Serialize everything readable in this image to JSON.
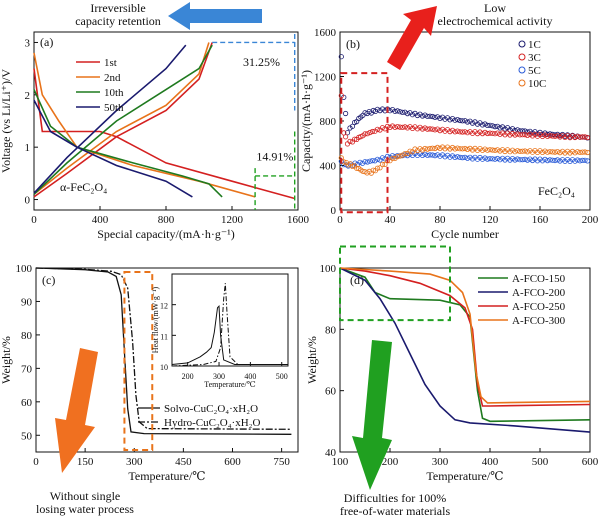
{
  "colors": {
    "red": "#d42020",
    "orange": "#e8731a",
    "green": "#1f7a1f",
    "navy": "#1a1a6e",
    "blue": "#2a5bd7",
    "arrow_blue": "#3a86d6",
    "arrow_red": "#e8201c",
    "arrow_orange": "#f07020",
    "arrow_green": "#20a020",
    "box_red": "#d42020",
    "box_orange": "#e8731a",
    "box_green": "#20a020"
  },
  "annotations": {
    "top_left": [
      "Irreversible",
      "capacity retention"
    ],
    "top_right": [
      "Low",
      "electrochemical activity"
    ],
    "bottom_left": [
      "Without single",
      "losing water process"
    ],
    "bottom_right": [
      "Difficulties for 100%",
      "free-of-water materials"
    ]
  },
  "chart_data": [
    {
      "panel": "(a)",
      "type": "line",
      "xlabel": "Special capacity/(mA·h·g⁻¹)",
      "ylabel": "Voltage (vs Li/Li⁺)/V",
      "xlim": [
        0,
        1600
      ],
      "ylim": [
        -0.2,
        3.2
      ],
      "xticks": [
        "0",
        "400",
        "800",
        "1200",
        "1600"
      ],
      "yticks": [
        "0",
        "1",
        "2",
        "3"
      ],
      "material_label": "α-FeC₂O₄",
      "legend": [
        "1st",
        "2nd",
        "10th",
        "50th"
      ],
      "annotations": [
        "31.25%",
        "14.91%"
      ],
      "series": [
        {
          "name": "1st",
          "color": "red",
          "discharge": [
            [
              0,
              2.5
            ],
            [
              50,
              1.3
            ],
            [
              400,
              1.3
            ],
            [
              500,
              1.2
            ],
            [
              800,
              0.7
            ],
            [
              1200,
              0.35
            ],
            [
              1580,
              0.02
            ]
          ],
          "charge": [
            [
              0,
              0.05
            ],
            [
              200,
              0.5
            ],
            [
              500,
              1.2
            ],
            [
              800,
              1.7
            ],
            [
              1000,
              2.3
            ],
            [
              1080,
              3.0
            ]
          ]
        },
        {
          "name": "2nd",
          "color": "orange",
          "discharge": [
            [
              0,
              2.8
            ],
            [
              50,
              2.0
            ],
            [
              150,
              1.5
            ],
            [
              260,
              1.0
            ],
            [
              600,
              0.65
            ],
            [
              1000,
              0.35
            ],
            [
              1340,
              0.05
            ]
          ],
          "charge": [
            [
              0,
              0.1
            ],
            [
              200,
              0.6
            ],
            [
              500,
              1.3
            ],
            [
              800,
              1.8
            ],
            [
              1000,
              2.4
            ],
            [
              1060,
              3.0
            ]
          ]
        },
        {
          "name": "10th",
          "color": "green",
          "discharge": [
            [
              0,
              2.1
            ],
            [
              100,
              1.4
            ],
            [
              260,
              1.0
            ],
            [
              600,
              0.7
            ],
            [
              900,
              0.45
            ],
            [
              1060,
              0.3
            ],
            [
              1140,
              0.05
            ]
          ],
          "charge": [
            [
              0,
              0.1
            ],
            [
              200,
              0.7
            ],
            [
              500,
              1.5
            ],
            [
              800,
              2.1
            ],
            [
              1000,
              2.5
            ],
            [
              1080,
              2.95
            ]
          ]
        },
        {
          "name": "50th",
          "color": "navy",
          "discharge": [
            [
              0,
              1.9
            ],
            [
              100,
              1.3
            ],
            [
              260,
              1.0
            ],
            [
              500,
              0.65
            ],
            [
              800,
              0.35
            ],
            [
              960,
              0.05
            ]
          ],
          "charge": [
            [
              0,
              0.12
            ],
            [
              200,
              0.8
            ],
            [
              500,
              1.7
            ],
            [
              800,
              2.5
            ],
            [
              920,
              2.95
            ]
          ]
        }
      ]
    },
    {
      "panel": "(b)",
      "type": "scatter",
      "xlabel": "Cycle number",
      "ylabel": "Capacity/(mA·h·g⁻¹)",
      "xlim": [
        0,
        200
      ],
      "ylim": [
        0,
        1600
      ],
      "xticks": [
        "0",
        "40",
        "80",
        "120",
        "160",
        "200"
      ],
      "yticks": [
        "0",
        "400",
        "800",
        "1200",
        "1600"
      ],
      "material_label": "FeC₂O₄",
      "legend": [
        "1C",
        "3C",
        "5C",
        "10C"
      ],
      "series": [
        {
          "name": "1C",
          "color": "navy",
          "points": [
            [
              1,
              1370
            ],
            [
              3,
              1020
            ],
            [
              6,
              700
            ],
            [
              10,
              760
            ],
            [
              15,
              820
            ],
            [
              20,
              870
            ],
            [
              25,
              880
            ],
            [
              30,
              900
            ],
            [
              40,
              900
            ],
            [
              60,
              860
            ],
            [
              80,
              830
            ],
            [
              100,
              800
            ],
            [
              120,
              760
            ],
            [
              140,
              720
            ],
            [
              160,
              690
            ],
            [
              180,
              670
            ],
            [
              200,
              650
            ]
          ]
        },
        {
          "name": "3C",
          "color": "red",
          "points": [
            [
              1,
              1020
            ],
            [
              3,
              700
            ],
            [
              6,
              600
            ],
            [
              10,
              620
            ],
            [
              15,
              650
            ],
            [
              20,
              680
            ],
            [
              30,
              720
            ],
            [
              40,
              750
            ],
            [
              60,
              740
            ],
            [
              80,
              720
            ],
            [
              100,
              700
            ],
            [
              120,
              690
            ],
            [
              140,
              680
            ],
            [
              160,
              670
            ],
            [
              180,
              660
            ],
            [
              200,
              655
            ]
          ]
        },
        {
          "name": "5C",
          "color": "blue",
          "points": [
            [
              1,
              430
            ],
            [
              5,
              400
            ],
            [
              10,
              410
            ],
            [
              20,
              430
            ],
            [
              30,
              450
            ],
            [
              40,
              480
            ],
            [
              60,
              500
            ],
            [
              80,
              490
            ],
            [
              100,
              470
            ],
            [
              120,
              460
            ],
            [
              140,
              455
            ],
            [
              160,
              450
            ],
            [
              180,
              445
            ],
            [
              200,
              445
            ]
          ]
        },
        {
          "name": "10C",
          "color": "orange",
          "points": [
            [
              1,
              460
            ],
            [
              5,
              420
            ],
            [
              10,
              400
            ],
            [
              15,
              370
            ],
            [
              20,
              340
            ],
            [
              25,
              340
            ],
            [
              30,
              370
            ],
            [
              40,
              450
            ],
            [
              60,
              540
            ],
            [
              80,
              560
            ],
            [
              100,
              550
            ],
            [
              120,
              540
            ],
            [
              140,
              530
            ],
            [
              160,
              525
            ],
            [
              180,
              520
            ],
            [
              200,
              520
            ]
          ]
        }
      ]
    },
    {
      "panel": "(c)",
      "type": "line",
      "xlabel": "Temperature/℃",
      "ylabel": "Weight/%",
      "xlim": [
        0,
        800
      ],
      "ylim": [
        45,
        100
      ],
      "xticks": [
        "0",
        "150",
        "300",
        "450",
        "600",
        "750"
      ],
      "yticks": [
        "50",
        "60",
        "70",
        "80",
        "90",
        "100"
      ],
      "legend": [
        "Solvo-CuC₂O₄·xH₂O",
        "Hydro-CuC₂O₄·xH₂O"
      ],
      "series": [
        {
          "name": "Solvo-CuC₂O₄·xH₂O",
          "style": "solid",
          "points": [
            [
              0,
              100
            ],
            [
              150,
              99.5
            ],
            [
              220,
              98.8
            ],
            [
              245,
              97.5
            ],
            [
              260,
              92
            ],
            [
              270,
              75
            ],
            [
              280,
              58
            ],
            [
              290,
              51
            ],
            [
              330,
              50.5
            ],
            [
              780,
              50.3
            ]
          ]
        },
        {
          "name": "Hydro-CuC₂O₄·xH₂O",
          "style": "dashdot",
          "points": [
            [
              0,
              100
            ],
            [
              150,
              99.6
            ],
            [
              230,
              99
            ],
            [
              260,
              98
            ],
            [
              280,
              94
            ],
            [
              295,
              78
            ],
            [
              305,
              62
            ],
            [
              315,
              54
            ],
            [
              340,
              52
            ],
            [
              780,
              51.8
            ]
          ]
        }
      ],
      "inset": {
        "xlabel": "Temperature/℃",
        "ylabel": "Heat flow/(mW·g⁻¹)",
        "xlim": [
          150,
          520
        ],
        "ylim": [
          10,
          13
        ],
        "xticks": [
          "200",
          "300",
          "400",
          "500"
        ],
        "yticks": [
          "10",
          "11",
          "12"
        ],
        "series": [
          {
            "style": "solid",
            "points": [
              [
                150,
                10.05
              ],
              [
                200,
                10.1
              ],
              [
                240,
                10.3
              ],
              [
                260,
                10.45
              ],
              [
                275,
                10.6
              ],
              [
                285,
                11.1
              ],
              [
                295,
                11.9
              ],
              [
                300,
                11.95
              ],
              [
                305,
                11.0
              ],
              [
                315,
                10.2
              ],
              [
                350,
                10.05
              ],
              [
                520,
                10.05
              ]
            ]
          },
          {
            "style": "dashdot",
            "points": [
              [
                150,
                10.0
              ],
              [
                250,
                10.05
              ],
              [
                290,
                10.15
              ],
              [
                305,
                10.6
              ],
              [
                315,
                12.2
              ],
              [
                320,
                12.7
              ],
              [
                325,
                11.8
              ],
              [
                335,
                10.3
              ],
              [
                360,
                10.05
              ],
              [
                520,
                10.05
              ]
            ]
          }
        ]
      }
    },
    {
      "panel": "(d)",
      "type": "line",
      "xlabel": "Temperature/℃",
      "ylabel": "Weight/%",
      "xlim": [
        100,
        600
      ],
      "ylim": [
        40,
        100
      ],
      "xticks": [
        "100",
        "200",
        "300",
        "400",
        "500",
        "600"
      ],
      "yticks": [
        "40",
        "60",
        "80",
        "100"
      ],
      "legend": [
        "A-FCO-150",
        "A-FCO-200",
        "A-FCO-250",
        "A-FCO-300"
      ],
      "series": [
        {
          "name": "A-FCO-150",
          "color": "green",
          "points": [
            [
              100,
              100
            ],
            [
              150,
              97
            ],
            [
              170,
              92
            ],
            [
              200,
              90
            ],
            [
              300,
              89.5
            ],
            [
              340,
              88
            ],
            [
              360,
              84
            ],
            [
              375,
              60
            ],
            [
              385,
              51
            ],
            [
              400,
              50
            ],
            [
              600,
              50.5
            ]
          ]
        },
        {
          "name": "A-FCO-200",
          "color": "navy",
          "points": [
            [
              100,
              100
            ],
            [
              150,
              96
            ],
            [
              180,
              90
            ],
            [
              210,
              82
            ],
            [
              240,
              72
            ],
            [
              270,
              62
            ],
            [
              300,
              55
            ],
            [
              330,
              50.5
            ],
            [
              360,
              49.5
            ],
            [
              450,
              48.5
            ],
            [
              600,
              46.5
            ]
          ]
        },
        {
          "name": "A-FCO-250",
          "color": "red",
          "points": [
            [
              100,
              100
            ],
            [
              150,
              99
            ],
            [
              200,
              97.5
            ],
            [
              260,
              95
            ],
            [
              320,
              91
            ],
            [
              350,
              87
            ],
            [
              365,
              80
            ],
            [
              375,
              62
            ],
            [
              385,
              55
            ],
            [
              400,
              55
            ],
            [
              600,
              55.5
            ]
          ]
        },
        {
          "name": "A-FCO-300",
          "color": "orange",
          "points": [
            [
              100,
              100
            ],
            [
              150,
              99.5
            ],
            [
              200,
              99
            ],
            [
              280,
              98
            ],
            [
              320,
              96
            ],
            [
              345,
              92
            ],
            [
              360,
              85
            ],
            [
              372,
              66
            ],
            [
              382,
              58
            ],
            [
              395,
              56
            ],
            [
              600,
              56.5
            ]
          ]
        }
      ]
    }
  ]
}
